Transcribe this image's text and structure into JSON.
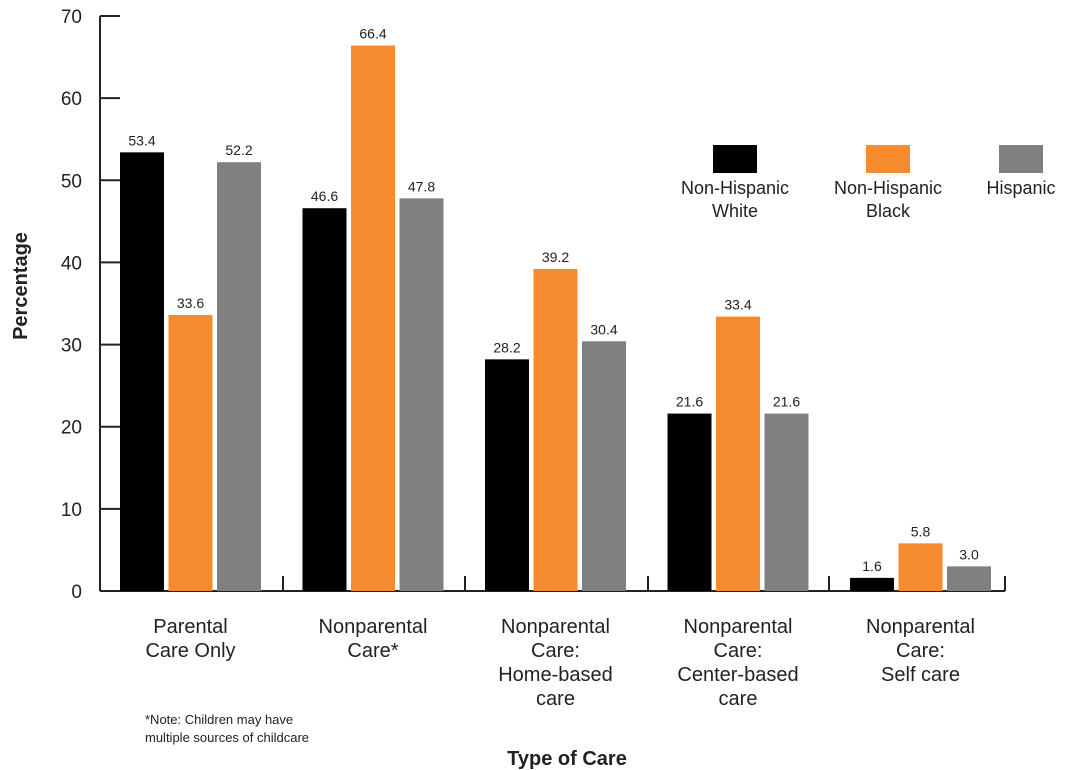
{
  "chart_data": {
    "type": "bar",
    "categories": [
      [
        "Parental",
        "Care Only"
      ],
      [
        "Nonparental",
        "Care*"
      ],
      [
        "Nonparental",
        "Care:",
        "Home-based",
        "care"
      ],
      [
        "Nonparental",
        "Care:",
        "Center-based",
        "care"
      ],
      [
        "Nonparental",
        "Care:",
        "Self care"
      ]
    ],
    "series": [
      {
        "name": [
          "Non-Hispanic",
          "White"
        ],
        "color": "#000000",
        "values": [
          53.4,
          46.6,
          28.2,
          21.6,
          1.6
        ],
        "labels": [
          "53.4",
          "46.6",
          "28.2",
          "21.6",
          "1.6"
        ]
      },
      {
        "name": [
          "Non-Hispanic",
          "Black"
        ],
        "color": "#f58a2e",
        "values": [
          33.6,
          66.4,
          39.2,
          33.4,
          5.8
        ],
        "labels": [
          "33.6",
          "66.4",
          "39.2",
          "33.4",
          "5.8"
        ]
      },
      {
        "name": [
          "Hispanic"
        ],
        "color": "#808080",
        "values": [
          52.2,
          47.8,
          30.4,
          21.6,
          3.0
        ],
        "labels": [
          "52.2",
          "47.8",
          "30.4",
          "21.6",
          "3.0"
        ]
      }
    ],
    "ylabel": "Percentage",
    "xlabel": "Type of Care",
    "ylim": [
      0,
      70
    ],
    "yticks": [
      0,
      10,
      20,
      30,
      40,
      50,
      60,
      70
    ],
    "grid": false,
    "legend": "top-right",
    "note": [
      "*Note: Children may have",
      "multiple sources of childcare"
    ]
  }
}
